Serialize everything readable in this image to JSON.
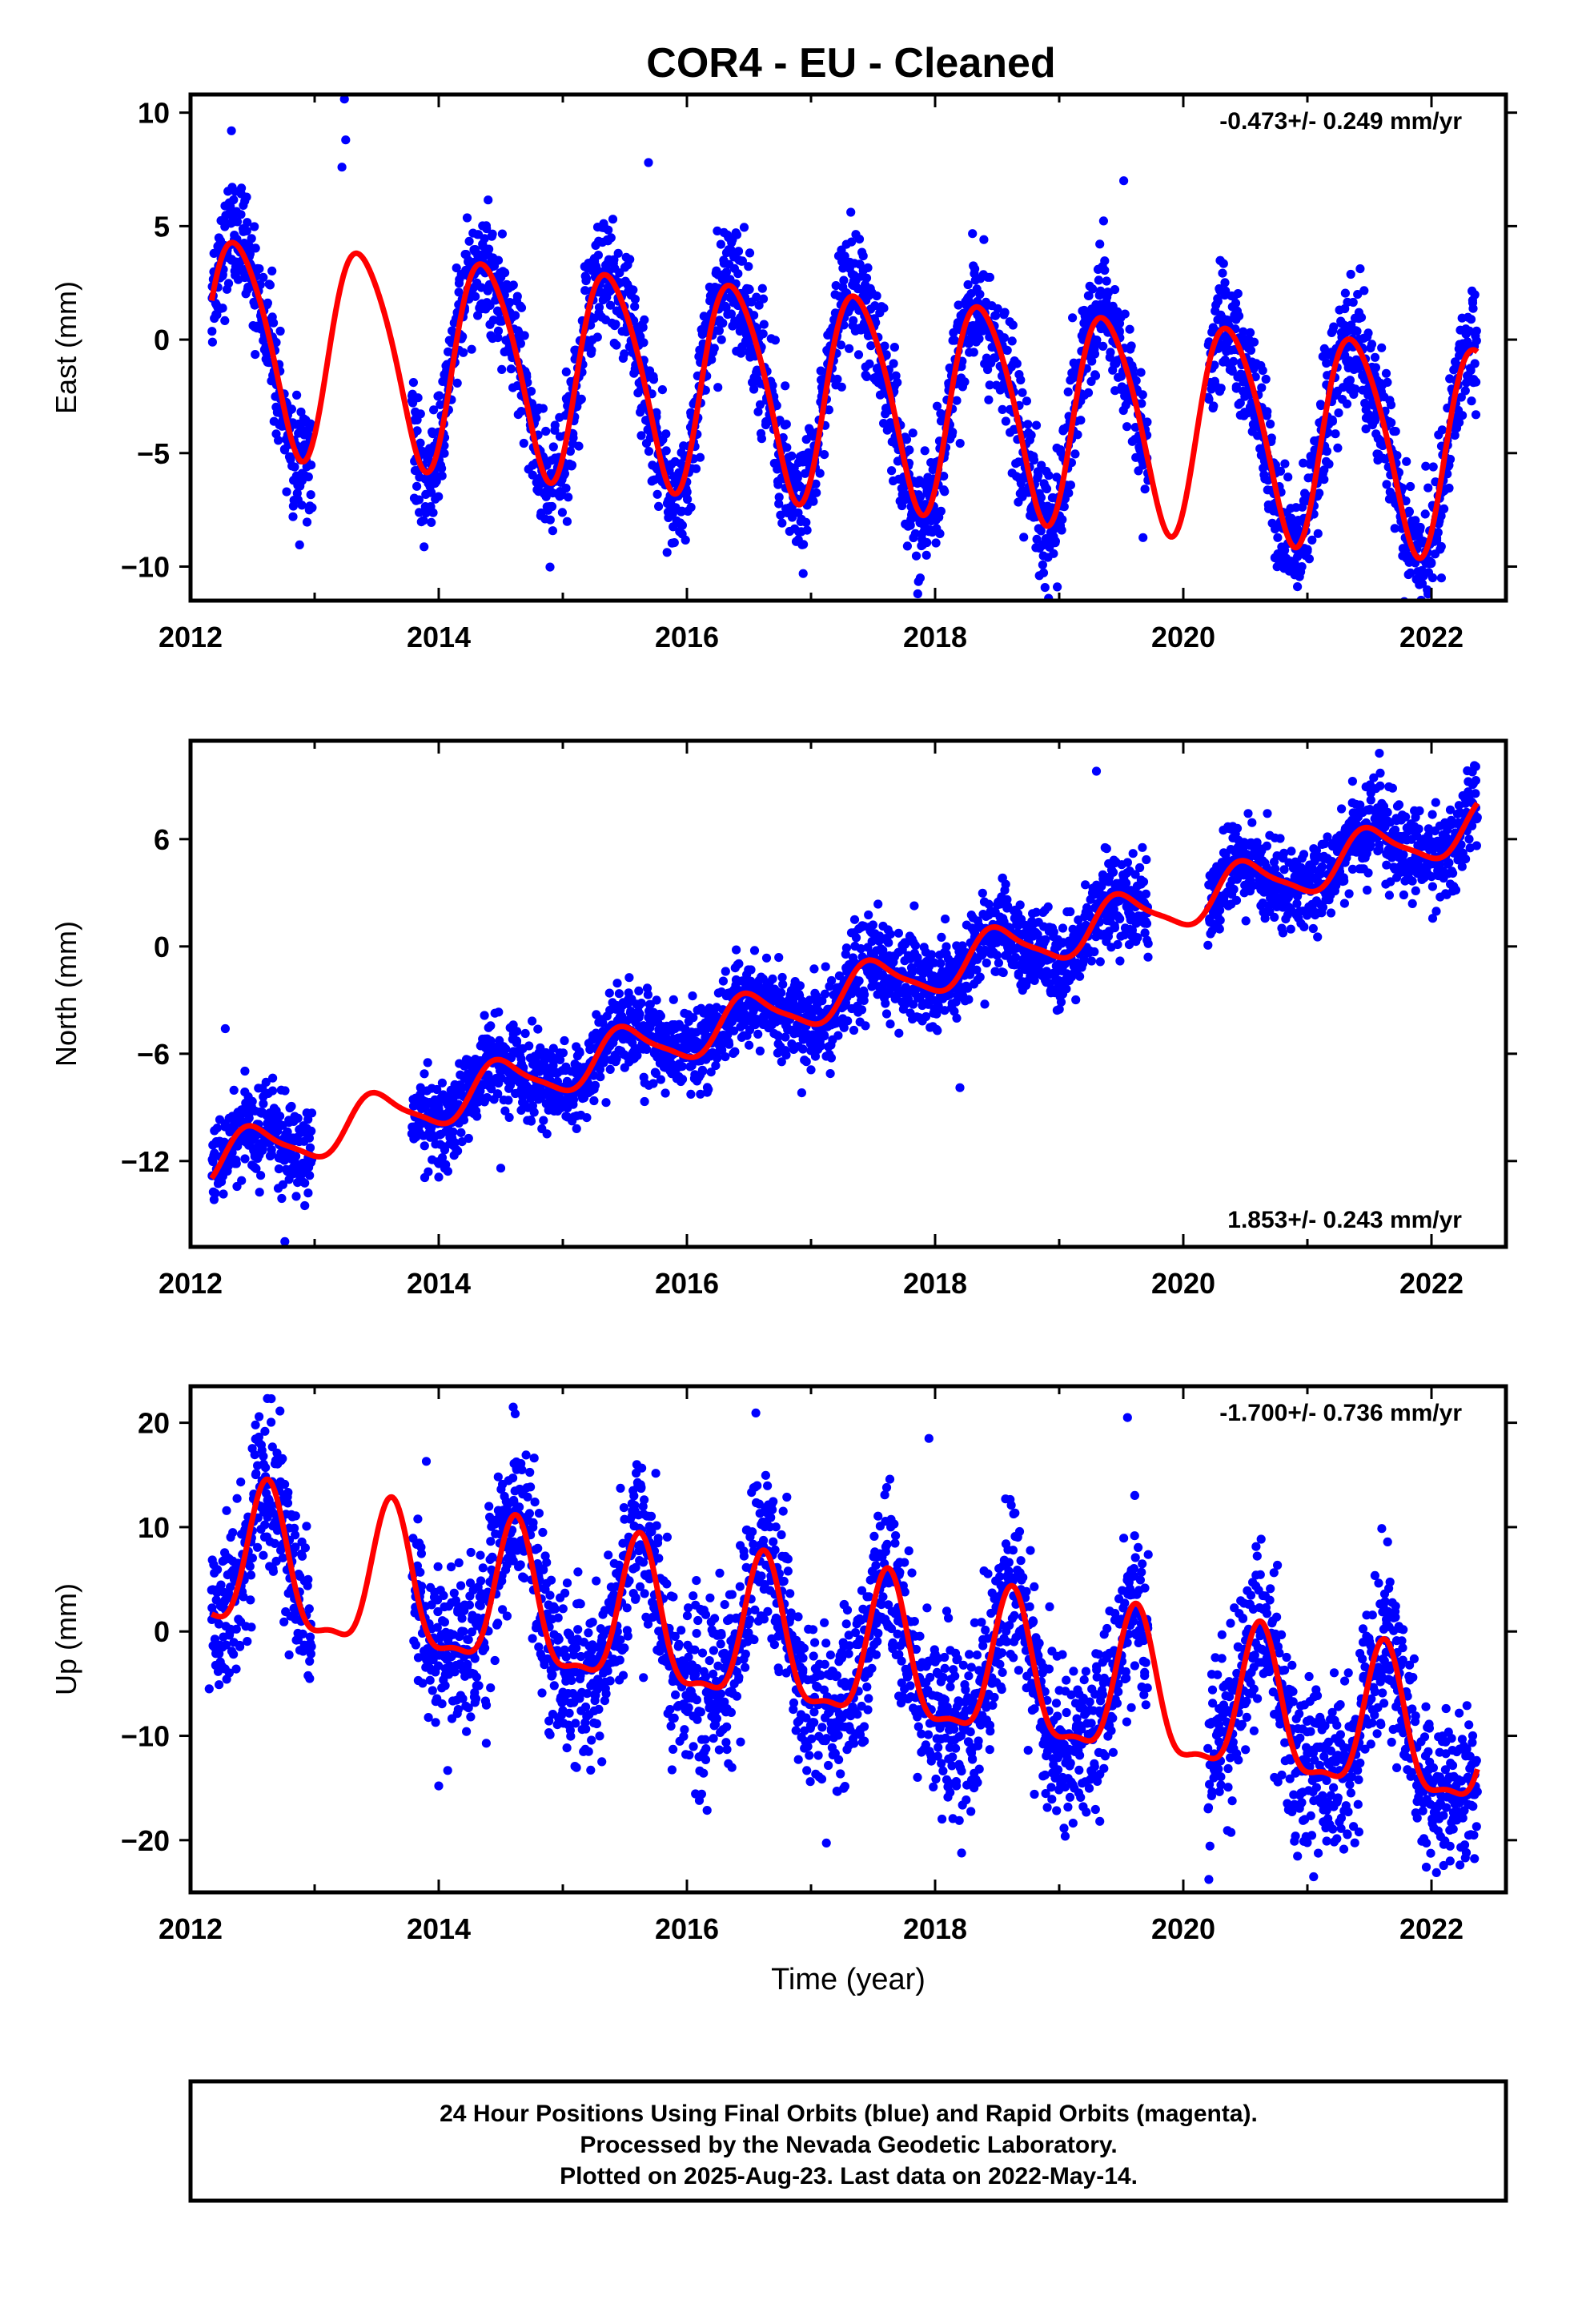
{
  "title": "COR4  - EU - Cleaned",
  "footer": {
    "line1": "24 Hour Positions Using Final Orbits (blue) and Rapid Orbits (magenta).",
    "line2": "Processed by the Nevada Geodetic Laboratory.",
    "line3": "Plotted on 2025-Aug-23. Last data on 2022-May-14."
  },
  "colors": {
    "points": "#0000ff",
    "fit": "#ff0000",
    "frame": "#000000"
  },
  "chart_data": [
    {
      "type": "scatter",
      "ylabel": "East (mm)",
      "xlabel": "",
      "rate_label": "-0.473+/- 0.249 mm/yr",
      "rate_position": "top-right",
      "xlim": [
        2012.0,
        2022.6
      ],
      "ylim": [
        -11.5,
        10.8
      ],
      "xticks": [
        2012,
        2014,
        2016,
        2018,
        2020,
        2022
      ],
      "yticks": [
        10,
        5,
        0,
        -5,
        -10
      ],
      "ytick_labels": [
        "10",
        "5",
        "0",
        "−5",
        "−10"
      ],
      "gaps": [
        [
          2012.98,
          2013.78
        ],
        [
          2019.72,
          2020.2
        ]
      ],
      "model": {
        "offset": 0.0,
        "rate": -0.473,
        "annual_amp": 4.6,
        "annual_phase": 2012.38,
        "semi_amp": 0.6,
        "semi_phase": 2012.2
      },
      "noise": 1.3,
      "outliers": [
        {
          "x": 2012.33,
          "y": 9.2
        },
        {
          "x": 2013.24,
          "y": 10.6
        },
        {
          "x": 2013.25,
          "y": 8.8
        },
        {
          "x": 2013.22,
          "y": 7.6
        },
        {
          "x": 2019.52,
          "y": 7.0
        },
        {
          "x": 2017.86,
          "y": -11.2
        },
        {
          "x": 2017.88,
          "y": -10.5
        },
        {
          "x": 2017.93,
          "y": -9.5
        },
        {
          "x": 2018.84,
          "y": -10.4
        },
        {
          "x": 2022.08,
          "y": -10.5
        },
        {
          "x": 2012.83,
          "y": -6.2
        },
        {
          "x": 2013.98,
          "y": -6.0
        },
        {
          "x": 2015.69,
          "y": 7.8
        },
        {
          "x": 2020.89,
          "y": -8.6
        }
      ]
    },
    {
      "type": "scatter",
      "ylabel": "North (mm)",
      "xlabel": "",
      "rate_label": "1.853+/- 0.243 mm/yr",
      "rate_position": "bottom-right",
      "xlim": [
        2012.0,
        2022.6
      ],
      "ylim": [
        -16.8,
        11.5
      ],
      "xticks": [
        2012,
        2014,
        2016,
        2018,
        2020,
        2022
      ],
      "yticks": [
        6,
        0,
        -6,
        -12
      ],
      "ytick_labels": [
        "6",
        "0",
        "−6",
        "−12"
      ],
      "gaps": [
        [
          2012.98,
          2013.78
        ],
        [
          2019.72,
          2020.2
        ]
      ],
      "model": {
        "offset": -12.0,
        "rate": 1.853,
        "annual_amp": 1.3,
        "annual_phase": 2012.5,
        "semi_amp": 0.3,
        "semi_phase": 2012.4
      },
      "noise": 1.2,
      "outliers": [
        {
          "x": 2012.76,
          "y": -16.5
        },
        {
          "x": 2012.28,
          "y": -4.6
        },
        {
          "x": 2021.58,
          "y": 10.8
        },
        {
          "x": 2019.3,
          "y": 9.8
        },
        {
          "x": 2018.2,
          "y": -7.9
        },
        {
          "x": 2017.0,
          "y": -6.9
        },
        {
          "x": 2014.5,
          "y": -12.4
        },
        {
          "x": 2014.0,
          "y": -12.9
        }
      ]
    },
    {
      "type": "scatter",
      "ylabel": "Up (mm)",
      "xlabel": "Time (year)",
      "rate_label": "-1.700+/- 0.736 mm/yr",
      "rate_position": "top-right",
      "xlim": [
        2012.0,
        2022.6
      ],
      "ylim": [
        -25.0,
        23.5
      ],
      "xticks": [
        2012,
        2014,
        2016,
        2018,
        2020,
        2022
      ],
      "yticks": [
        20,
        10,
        0,
        -10,
        -20
      ],
      "ytick_labels": [
        "20",
        "10",
        "0",
        "−10",
        "−20"
      ],
      "gaps": [
        [
          2012.98,
          2013.78
        ],
        [
          2019.72,
          2020.2
        ]
      ],
      "model": {
        "offset": 6.3,
        "rate": -1.7,
        "annual_amp": 6.8,
        "annual_phase": 2012.62,
        "semi_amp": 2.2,
        "semi_phase": 2012.62
      },
      "noise": 4.0,
      "outliers": [
        {
          "x": 2012.65,
          "y": 22.3
        },
        {
          "x": 2014.6,
          "y": 21.5
        },
        {
          "x": 2019.55,
          "y": 20.5
        },
        {
          "x": 2017.95,
          "y": 18.5
        },
        {
          "x": 2013.9,
          "y": 16.3
        },
        {
          "x": 2014.0,
          "y": -14.8
        },
        {
          "x": 2016.1,
          "y": -16.2
        },
        {
          "x": 2018.8,
          "y": -15.6
        },
        {
          "x": 2021.05,
          "y": -23.5
        },
        {
          "x": 2020.2,
          "y": -17.0
        },
        {
          "x": 2022.15,
          "y": -22.0
        },
        {
          "x": 2012.15,
          "y": -5.5
        }
      ]
    }
  ]
}
